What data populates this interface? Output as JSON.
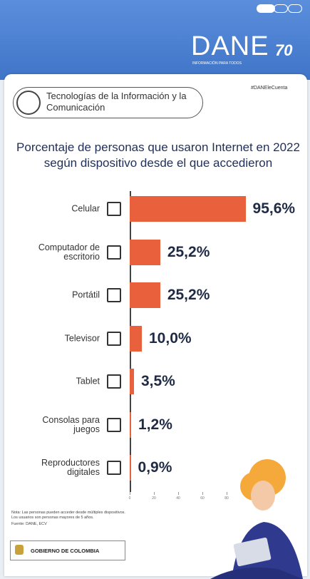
{
  "header": {
    "logo": "DANE",
    "anniversary": "70",
    "tagline": "INFORMACIÓN PARA TODOS",
    "hashtag": "#DANEleCuenta"
  },
  "topic": "Tecnologías de la Información y la Comunicación",
  "chart_data": {
    "type": "bar",
    "title": "Porcentaje de personas que usaron Internet en 2022 según dispositivo desde el que accedieron",
    "categories": [
      "Celular",
      "Computador de escritorio",
      "Portátil",
      "Televisor",
      "Tablet",
      "Consolas para juegos",
      "Reproductores digitales"
    ],
    "values": [
      95.6,
      25.2,
      25.2,
      10.0,
      3.5,
      1.2,
      0.9
    ],
    "value_labels": [
      "95,6%",
      "25,2%",
      "25,2%",
      "10,0%",
      "3,5%",
      "1,2%",
      "0,9%"
    ],
    "color": "#e8603c",
    "xlim": [
      0,
      100
    ],
    "xticks": [
      0,
      20,
      40,
      60,
      80,
      100
    ]
  },
  "footer": {
    "note": "Nota: Las personas pueden acceder desde múltiples dispositivos. Los usuarios son personas mayores de 5 años.",
    "source": "Fuente: DANE, ECV",
    "government": "GOBIERNO DE COLOMBIA"
  }
}
